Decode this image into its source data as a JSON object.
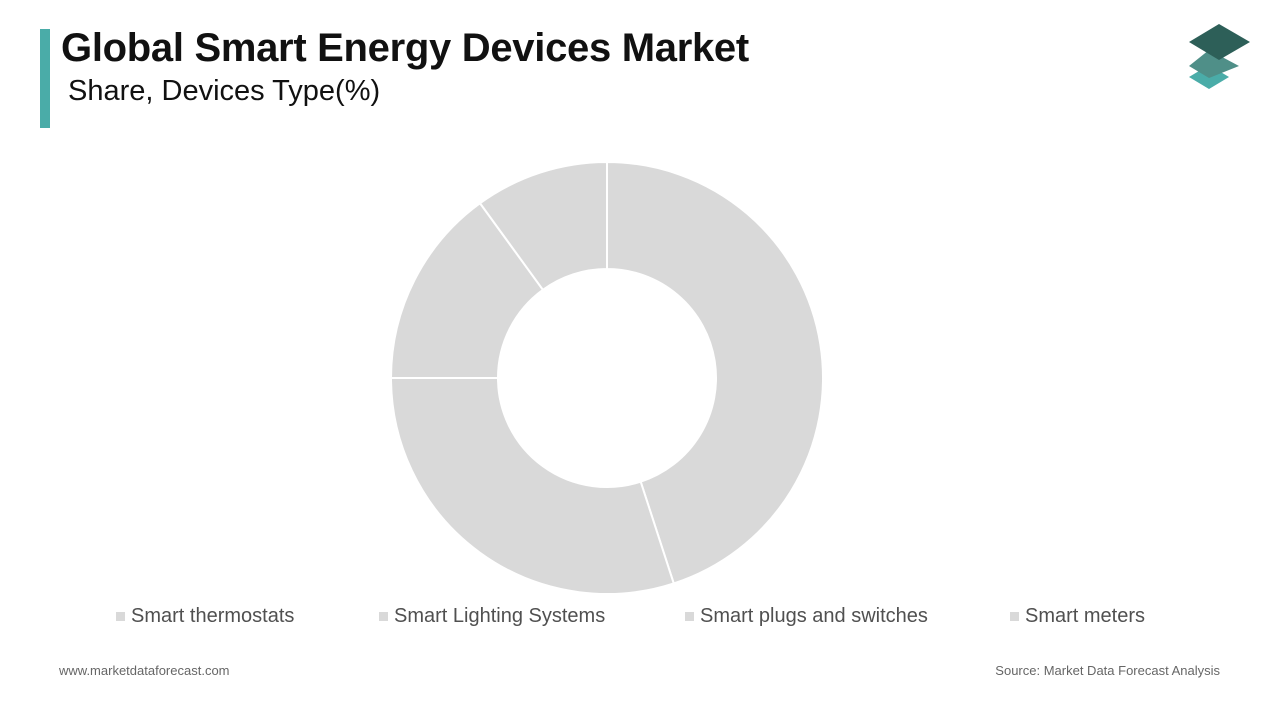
{
  "header": {
    "title": "Global Smart Energy Devices Market",
    "subtitle": "Share, Devices Type(%)"
  },
  "colors": {
    "accent": "#4aaca8",
    "slice": "#d9d9d9",
    "logo_dark": "#2d5f58",
    "logo_mid": "#4f8f88",
    "logo_light": "#4aaca8"
  },
  "logo": {
    "icon": "stacked-layers-icon"
  },
  "chart_data": {
    "type": "pie",
    "variant": "donut",
    "categories": [
      "Smart thermostats",
      "Smart Lighting Systems",
      "Smart plugs and switches",
      "Smart meters"
    ],
    "values": [
      45,
      30,
      15,
      10
    ],
    "legend_position": "bottom"
  },
  "footer": {
    "website": "www.marketdataforecast.com",
    "source": "Source: Market Data Forecast Analysis"
  }
}
